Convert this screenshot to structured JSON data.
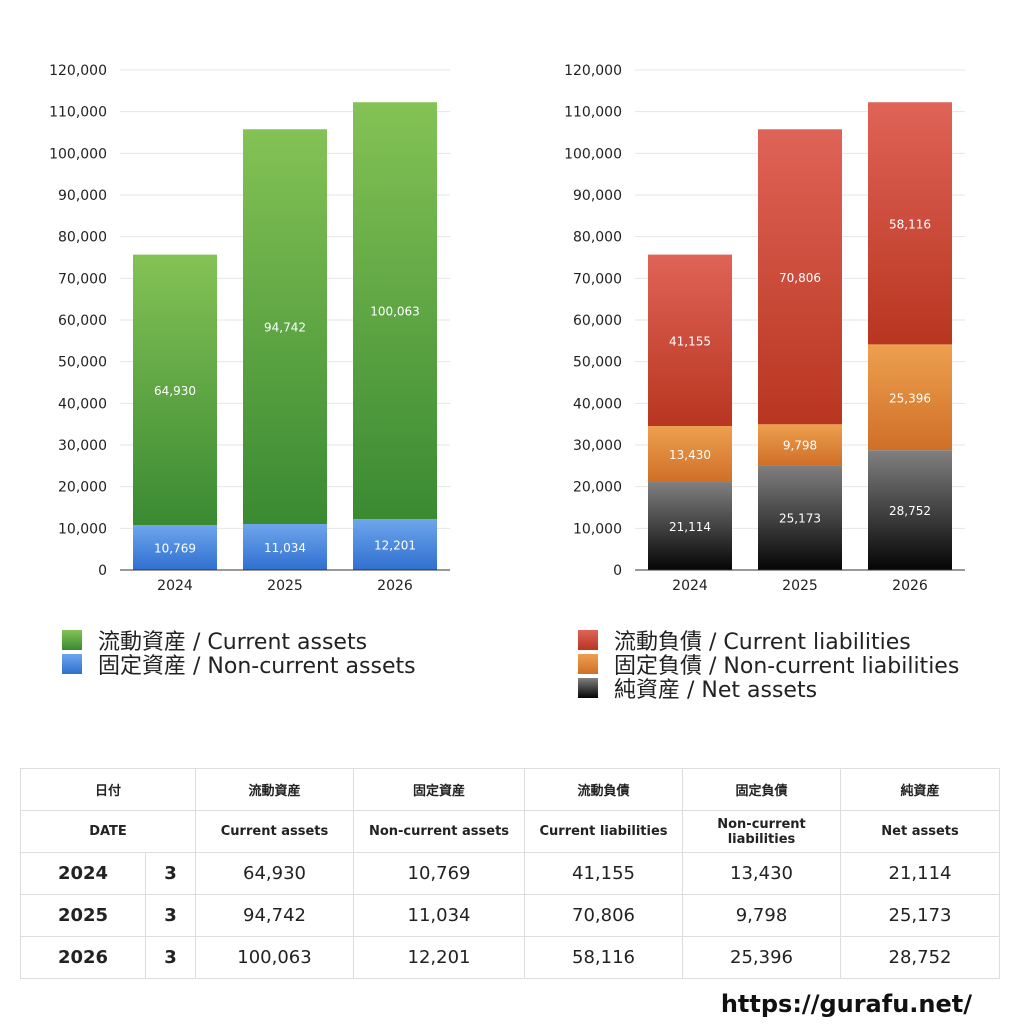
{
  "chart_data": [
    {
      "type": "bar",
      "stacked": true,
      "categories": [
        "2024",
        "2025",
        "2026"
      ],
      "ylim": [
        0,
        120000
      ],
      "yticks": [
        "0",
        "10,000",
        "20,000",
        "30,000",
        "40,000",
        "50,000",
        "60,000",
        "70,000",
        "80,000",
        "90,000",
        "100,000",
        "110,000",
        "120,000"
      ],
      "grid": true,
      "legend_position": "bottom",
      "series": [
        {
          "name": "固定資産 / Non-current assets",
          "values": [
            10769,
            11034,
            12201
          ],
          "labels": [
            "10,769",
            "11,034",
            "12,201"
          ],
          "color_top": "#6ea6ec",
          "color_bottom": "#2f6fd0"
        },
        {
          "name": "流動資産 / Current assets",
          "values": [
            64930,
            94742,
            100063
          ],
          "labels": [
            "64,930",
            "94,742",
            "100,063"
          ],
          "color_top": "#84c255",
          "color_bottom": "#3a8a32"
        }
      ]
    },
    {
      "type": "bar",
      "stacked": true,
      "categories": [
        "2024",
        "2025",
        "2026"
      ],
      "ylim": [
        0,
        120000
      ],
      "yticks": [
        "0",
        "10,000",
        "20,000",
        "30,000",
        "40,000",
        "50,000",
        "60,000",
        "70,000",
        "80,000",
        "90,000",
        "100,000",
        "110,000",
        "120,000"
      ],
      "grid": true,
      "legend_position": "bottom",
      "series": [
        {
          "name": "純資産 / Net assets",
          "values": [
            21114,
            25173,
            28752
          ],
          "labels": [
            "21,114",
            "25,173",
            "28,752"
          ],
          "color_top": "#808080",
          "color_bottom": "#050505"
        },
        {
          "name": "固定負債 / Non-current liabilities",
          "values": [
            13430,
            9798,
            25396
          ],
          "labels": [
            "13,430",
            "9,798",
            "25,396"
          ],
          "color_top": "#eda04e",
          "color_bottom": "#d06f28"
        },
        {
          "name": "流動負債 / Current liabilities",
          "values": [
            41155,
            70806,
            58116
          ],
          "labels": [
            "41,155",
            "70,806",
            "58,116"
          ],
          "color_top": "#df6357",
          "color_bottom": "#b83620"
        }
      ]
    }
  ],
  "legend_assets": [
    {
      "label": "流動資産 / Current assets",
      "color_top": "#84c255",
      "color_bottom": "#3a8a32"
    },
    {
      "label": "固定資産 / Non-current assets",
      "color_top": "#6ea6ec",
      "color_bottom": "#2f6fd0"
    }
  ],
  "legend_liab": [
    {
      "label": "流動負債 / Current liabilities",
      "color_top": "#df6357",
      "color_bottom": "#b83620"
    },
    {
      "label": "固定負債 / Non-current liabilities",
      "color_top": "#eda04e",
      "color_bottom": "#d06f28"
    },
    {
      "label": "純資産 / Net assets",
      "color_top": "#808080",
      "color_bottom": "#050505"
    }
  ],
  "table": {
    "header_jp": [
      "日付",
      "流動資産",
      "固定資産",
      "流動負債",
      "固定負債",
      "純資産"
    ],
    "header_en": [
      "DATE",
      "Current assets",
      "Non-current assets",
      "Current liabilities",
      "Non-current liabilities",
      "Net assets"
    ],
    "rows": [
      {
        "year": "2024",
        "month": "3",
        "values": [
          "64,930",
          "10,769",
          "41,155",
          "13,430",
          "21,114"
        ]
      },
      {
        "year": "2025",
        "month": "3",
        "values": [
          "94,742",
          "11,034",
          "70,806",
          "9,798",
          "25,173"
        ]
      },
      {
        "year": "2026",
        "month": "3",
        "values": [
          "100,063",
          "12,201",
          "58,116",
          "25,396",
          "28,752"
        ]
      }
    ]
  },
  "site": "https://gurafu.net/"
}
